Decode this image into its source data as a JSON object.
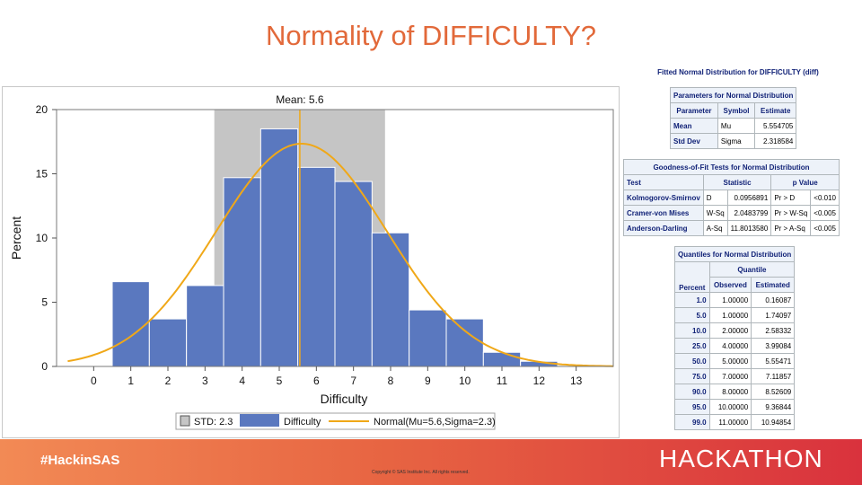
{
  "slide": {
    "title": "Normality of DIFFICULTY?"
  },
  "chart_data": {
    "type": "bar",
    "title": "Mean: 5.6",
    "xlabel": "Difficulty",
    "ylabel": "Percent",
    "xlim": [
      -1,
      14
    ],
    "ylim": [
      0,
      20
    ],
    "xticks": [
      0,
      1,
      2,
      3,
      4,
      5,
      6,
      7,
      8,
      9,
      10,
      11,
      12,
      13
    ],
    "yticks": [
      0,
      5,
      10,
      15,
      20
    ],
    "bin_width": 1,
    "bins": [
      {
        "x": 1,
        "value": 6.6
      },
      {
        "x": 2,
        "value": 3.7
      },
      {
        "x": 3,
        "value": 6.3
      },
      {
        "x": 4,
        "value": 14.7
      },
      {
        "x": 5,
        "value": 18.5
      },
      {
        "x": 6,
        "value": 15.5
      },
      {
        "x": 7,
        "value": 14.4
      },
      {
        "x": 8,
        "value": 10.4
      },
      {
        "x": 9,
        "value": 4.4
      },
      {
        "x": 10,
        "value": 3.7
      },
      {
        "x": 11,
        "value": 1.1
      },
      {
        "x": 12,
        "value": 0.4
      }
    ],
    "mean": 5.554705,
    "std": 2.318584,
    "std_band": [
      3.25,
      7.85
    ],
    "normal_curve": {
      "mu": 5.6,
      "sigma": 2.3,
      "x_range": [
        -0.7,
        14.0
      ]
    },
    "grid": false,
    "legend": {
      "position": "bottom",
      "items": [
        {
          "label": "STD: 2.3",
          "color": "#c5c5c5"
        },
        {
          "label": "Difficulty",
          "color": "#5a78bf"
        },
        {
          "label": "Normal(Mu=5.6,Sigma=2.3)",
          "color": "#f0a818"
        }
      ]
    },
    "colors": {
      "bar": "#5a78bf",
      "bar_edge": "#ffffff",
      "band": "#c5c5c5",
      "curve": "#f0a818",
      "mean_line": "#f0a818"
    }
  },
  "tables": {
    "title": "Fitted Normal Distribution for DIFFICULTY (diff)",
    "params": {
      "caption": "Parameters for Normal Distribution",
      "headers": [
        "Parameter",
        "Symbol",
        "Estimate"
      ],
      "rows": [
        [
          "Mean",
          "Mu",
          "5.554705"
        ],
        [
          "Std Dev",
          "Sigma",
          "2.318584"
        ]
      ]
    },
    "gof": {
      "caption": "Goodness-of-Fit Tests for Normal Distribution",
      "headers": [
        "Test",
        "Statistic",
        "p Value"
      ],
      "rows": [
        [
          "Kolmogorov-Smirnov",
          "D",
          "0.0956891",
          "Pr > D",
          "<0.010"
        ],
        [
          "Cramer-von Mises",
          "W-Sq",
          "2.0483799",
          "Pr > W-Sq",
          "<0.005"
        ],
        [
          "Anderson-Darling",
          "A-Sq",
          "11.8013580",
          "Pr > A-Sq",
          "<0.005"
        ]
      ]
    },
    "quantiles": {
      "caption": "Quantiles for Normal Distribution",
      "group_header": "Quantile",
      "headers": [
        "Percent",
        "Observed",
        "Estimated"
      ],
      "rows": [
        [
          "1.0",
          "1.00000",
          "0.16087"
        ],
        [
          "5.0",
          "1.00000",
          "1.74097"
        ],
        [
          "10.0",
          "2.00000",
          "2.58332"
        ],
        [
          "25.0",
          "4.00000",
          "3.99084"
        ],
        [
          "50.0",
          "5.00000",
          "5.55471"
        ],
        [
          "75.0",
          "7.00000",
          "7.11857"
        ],
        [
          "90.0",
          "8.00000",
          "8.52609"
        ],
        [
          "95.0",
          "10.00000",
          "9.36844"
        ],
        [
          "99.0",
          "11.00000",
          "10.94854"
        ]
      ]
    }
  },
  "footer": {
    "hashtag": "#HackinSAS",
    "copyright": "Copyright © SAS Institute Inc. All rights reserved.",
    "logo": "HACKATHON"
  }
}
